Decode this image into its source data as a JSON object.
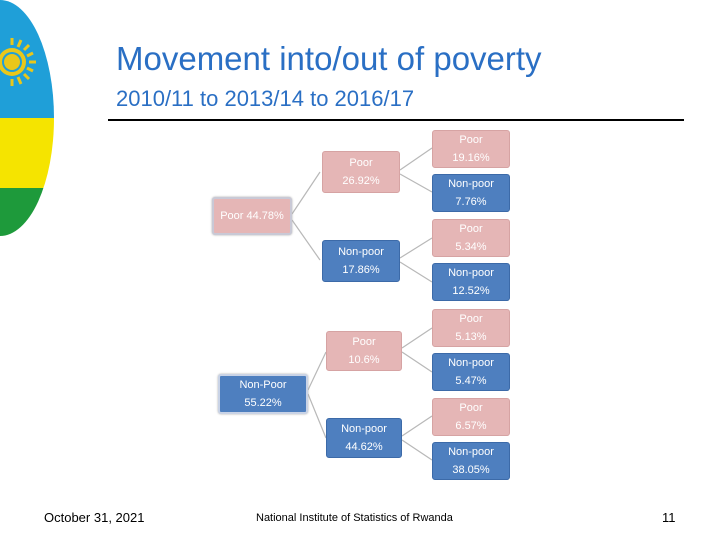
{
  "slide": {
    "title": "Movement into/out of poverty",
    "subtitle": "2010/11 to 2013/14 to 2016/17",
    "footer_date": "October 31, 2021",
    "footer_org": "National Institute of Statistics of Rwanda",
    "page_number": "11"
  },
  "colors": {
    "title": "#2a6fc4",
    "poor_node": "#e5b6b6",
    "nonpoor_node": "#4e7fbf",
    "flag_blue": "#1f9fd8",
    "flag_yellow": "#f5e400",
    "flag_green": "#1e9a3b",
    "flag_sun": "#e9c71a"
  },
  "tree": {
    "roots": [
      {
        "label": "Poor 44.78%",
        "category": "poor",
        "children": [
          {
            "label": "Poor",
            "value": "26.92%",
            "category": "poor",
            "children": [
              {
                "label": "Poor",
                "value": "19.16%",
                "category": "poor"
              },
              {
                "label": "Non-poor",
                "value": "7.76%",
                "category": "nonpoor"
              }
            ]
          },
          {
            "label": "Non-poor",
            "value": "17.86%",
            "category": "nonpoor",
            "children": [
              {
                "label": "Poor",
                "value": "5.34%",
                "category": "poor"
              },
              {
                "label": "Non-poor",
                "value": "12.52%",
                "category": "nonpoor"
              }
            ]
          }
        ]
      },
      {
        "label": "Non-Poor",
        "value": "55.22%",
        "category": "nonpoor",
        "children": [
          {
            "label": "Poor",
            "value": "10.6%",
            "category": "poor",
            "children": [
              {
                "label": "Poor",
                "value": "5.13%",
                "category": "poor"
              },
              {
                "label": "Non-poor",
                "value": "5.47%",
                "category": "nonpoor"
              }
            ]
          },
          {
            "label": "Non-poor",
            "value": "44.62%",
            "category": "nonpoor",
            "children": [
              {
                "label": "Poor",
                "value": "6.57%",
                "category": "poor"
              },
              {
                "label": "Non-poor",
                "value": "38.05%",
                "category": "nonpoor"
              }
            ]
          }
        ]
      }
    ]
  }
}
